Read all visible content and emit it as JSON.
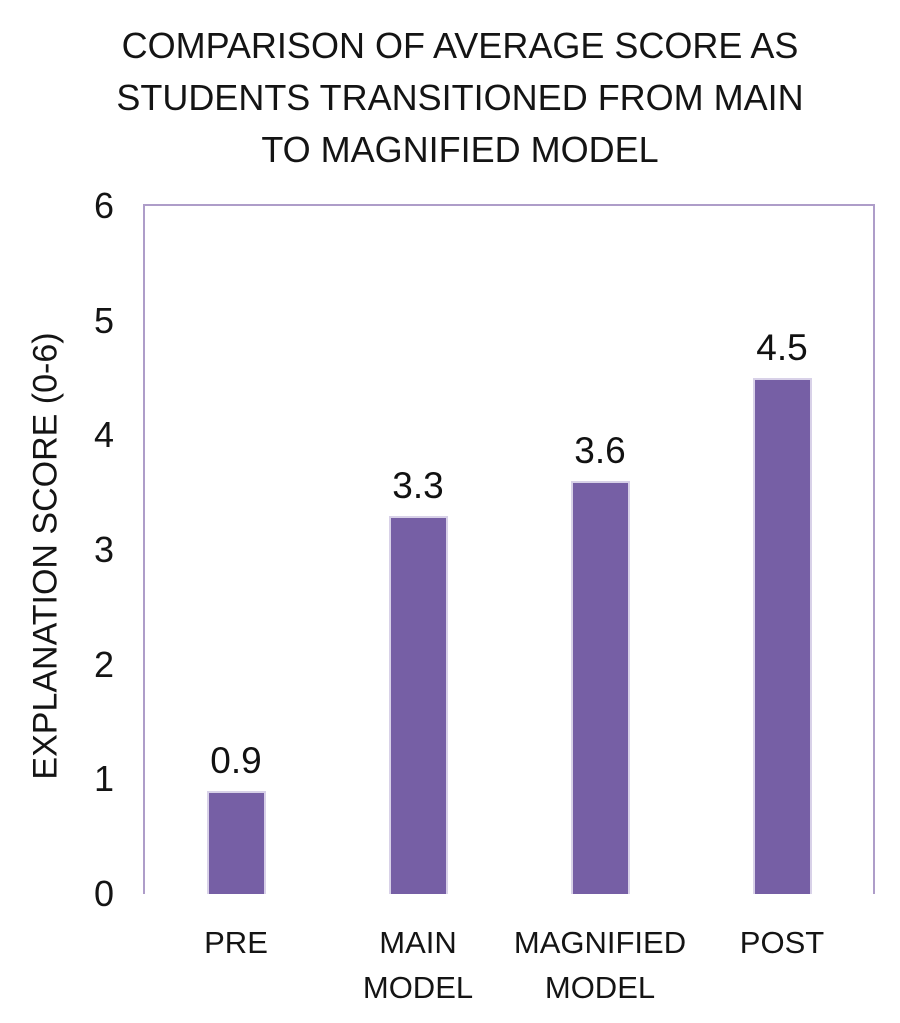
{
  "chart_data": {
    "type": "bar",
    "title": "COMPARISON OF AVERAGE SCORE AS\nSTUDENTS TRANSITIONED FROM MAIN\nTO MAGNIFIED MODEL",
    "xlabel": "",
    "ylabel": "EXPLANATION SCORE (0-6)",
    "categories": [
      "PRE",
      "MAIN MODEL",
      "MAGNIFIED MODEL",
      "POST"
    ],
    "values": [
      0.9,
      3.3,
      3.6,
      4.5
    ],
    "data_labels": [
      "0.9",
      "3.3",
      "3.6",
      "4.5"
    ],
    "yticks": [
      0,
      1,
      2,
      3,
      4,
      5,
      6
    ],
    "ylim": [
      0,
      6
    ],
    "grid": false,
    "legend": false,
    "bar_color": "#765FA5",
    "bar_border_color": "#D8D1E8",
    "plot_border_color": "#AE9DC9",
    "text_color": "#141414"
  }
}
